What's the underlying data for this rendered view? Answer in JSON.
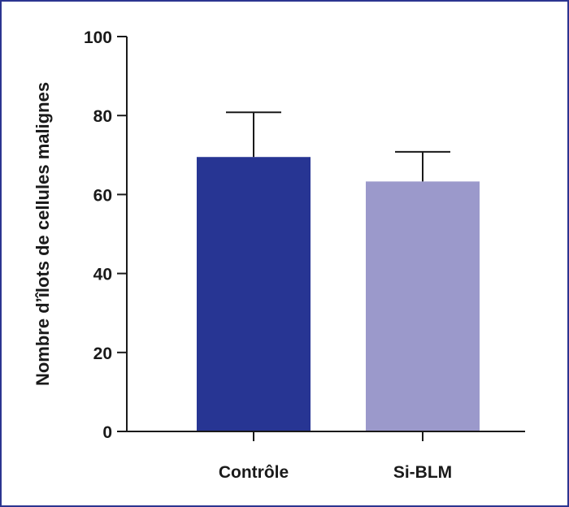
{
  "chart_data": {
    "type": "bar",
    "title": "",
    "xlabel": "",
    "ylabel": "Nombre d’îlots de cellules malignes",
    "ylim": [
      0,
      100
    ],
    "yticks": [
      0,
      20,
      40,
      60,
      80,
      100
    ],
    "categories": [
      "Contrôle",
      "Si-BLM"
    ],
    "values": [
      69.5,
      63.3
    ],
    "error_upper": [
      80.8,
      70.8
    ],
    "colors": [
      "#273593",
      "#9b99cb"
    ],
    "grid": false,
    "legend": "none"
  }
}
